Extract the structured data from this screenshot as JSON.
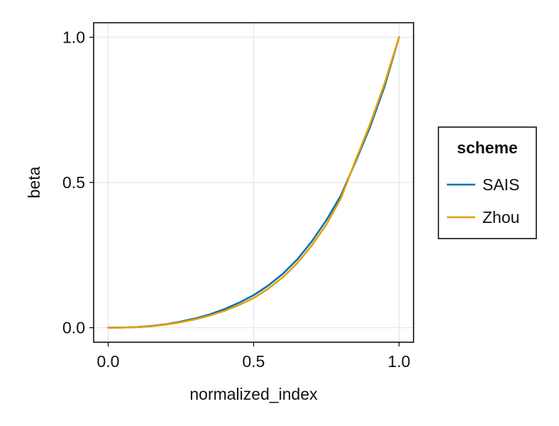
{
  "chart_data": {
    "type": "line",
    "title": "",
    "xlabel": "normalized_index",
    "ylabel": "beta",
    "xlim": [
      -0.05,
      1.05
    ],
    "ylim": [
      -0.05,
      1.05
    ],
    "x_ticks": [
      0.0,
      0.5,
      1.0
    ],
    "x_tick_labels": [
      "0.0",
      "0.5",
      "1.0"
    ],
    "y_ticks": [
      0.0,
      0.5,
      1.0
    ],
    "y_tick_labels": [
      "0.0",
      "0.5",
      "1.0"
    ],
    "grid": true,
    "legend_title": "scheme",
    "legend_position": "right",
    "series": [
      {
        "name": "SAIS",
        "color": "#0072B2",
        "x": [
          0.0,
          0.05,
          0.1,
          0.15,
          0.2,
          0.25,
          0.3,
          0.35,
          0.4,
          0.45,
          0.5,
          0.55,
          0.6,
          0.65,
          0.7,
          0.75,
          0.8,
          0.85,
          0.9,
          0.95,
          1.0
        ],
        "y": [
          0.0,
          0.0005,
          0.002,
          0.006,
          0.012,
          0.021,
          0.032,
          0.046,
          0.064,
          0.086,
          0.112,
          0.145,
          0.185,
          0.235,
          0.297,
          0.37,
          0.455,
          0.57,
          0.69,
          0.83,
          1.0
        ]
      },
      {
        "name": "Zhou",
        "color": "#E69F00",
        "x": [
          0.0,
          0.05,
          0.1,
          0.15,
          0.2,
          0.25,
          0.3,
          0.35,
          0.4,
          0.45,
          0.5,
          0.55,
          0.6,
          0.65,
          0.7,
          0.75,
          0.8,
          0.85,
          0.9,
          0.95,
          1.0
        ],
        "y": [
          0.0,
          0.0004,
          0.0018,
          0.005,
          0.011,
          0.019,
          0.029,
          0.042,
          0.058,
          0.078,
          0.102,
          0.134,
          0.173,
          0.222,
          0.283,
          0.355,
          0.445,
          0.575,
          0.7,
          0.84,
          1.0
        ]
      }
    ]
  }
}
